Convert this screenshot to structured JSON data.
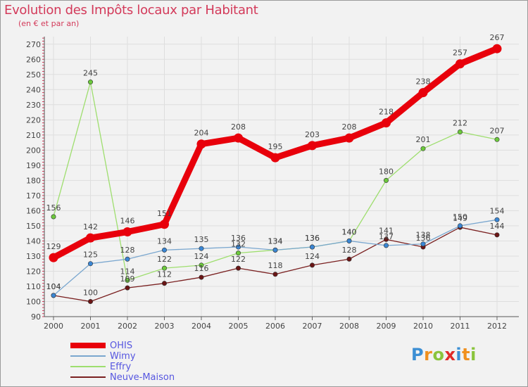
{
  "title": "Evolution des Impôts locaux par Habitant",
  "subtitle": "(en € et par an)",
  "brand": {
    "letters": [
      "P",
      "r",
      "o",
      "x",
      "i",
      "t",
      "i"
    ],
    "colors": [
      "#3c8fd4",
      "#f0901e",
      "#8ac43c",
      "#e02a28",
      "#3c8fd4",
      "#f0901e",
      "#8ac43c"
    ]
  },
  "chart_data": {
    "type": "line",
    "title": "Evolution des Impôts locaux par Habitant",
    "subtitle": "(en € et par an)",
    "xlabel": "",
    "ylabel": "",
    "ylim": [
      90,
      275
    ],
    "yticks": [
      90,
      100,
      110,
      120,
      130,
      140,
      150,
      160,
      170,
      180,
      190,
      200,
      210,
      220,
      230,
      240,
      250,
      260,
      270
    ],
    "categories": [
      "2000",
      "2001",
      "2002",
      "2003",
      "2004",
      "2005",
      "2006",
      "2007",
      "2008",
      "2009",
      "2010",
      "2011",
      "2012"
    ],
    "grid": true,
    "legend_position": "bottom-left",
    "series": [
      {
        "name": "OHIS",
        "color": "#e8000b",
        "markerColor": "#e8000b",
        "labelColor": "#444444",
        "values": [
          129,
          142,
          146,
          151,
          204,
          208,
          195,
          203,
          208,
          218,
          238,
          257,
          267
        ]
      },
      {
        "name": "Wimy",
        "color": "#7aa7cf",
        "markerColor": "#3a86d4",
        "labelColor": "#444444",
        "values": [
          104,
          125,
          128,
          134,
          135,
          136,
          134,
          136,
          140,
          137,
          138,
          150,
          154
        ]
      },
      {
        "name": "Effry",
        "color": "#9ede6e",
        "markerColor": "#6cc93c",
        "labelColor": "#444444",
        "values": [
          156,
          245,
          114,
          122,
          124,
          132,
          134,
          136,
          140,
          180,
          201,
          212,
          207
        ]
      },
      {
        "name": "Neuve-Maison",
        "color": "#7a2020",
        "markerColor": "#6a1515",
        "labelColor": "#444444",
        "values": [
          104,
          100,
          109,
          112,
          116,
          122,
          118,
          124,
          128,
          141,
          136,
          149,
          144
        ]
      }
    ]
  }
}
